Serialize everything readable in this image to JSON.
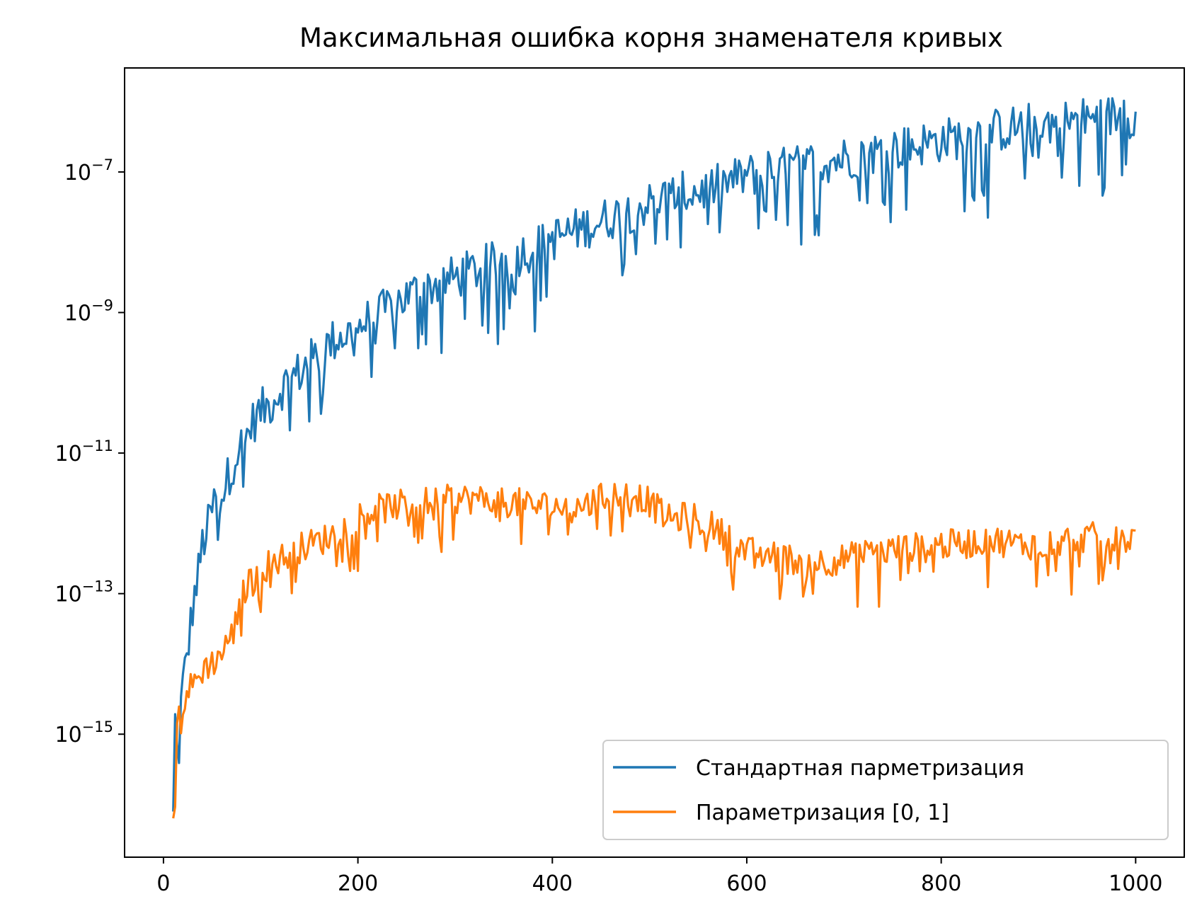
{
  "chart_data": {
    "type": "line",
    "title": "Максимальная ошибка корня знаменателя кривых",
    "xlabel": "",
    "ylabel": "",
    "x_range": [
      10,
      1000
    ],
    "xlim": [
      -40,
      1050
    ],
    "ylim_log10": [
      -16.75,
      -5.52
    ],
    "y_scale": "log",
    "grid": false,
    "legend_position": "lower right",
    "x_ticks": [
      {
        "value": 0,
        "label": "0"
      },
      {
        "value": 200,
        "label": "200"
      },
      {
        "value": 400,
        "label": "400"
      },
      {
        "value": 600,
        "label": "600"
      },
      {
        "value": 800,
        "label": "800"
      },
      {
        "value": 1000,
        "label": "1000"
      }
    ],
    "y_ticks": [
      {
        "exponent": -15,
        "base": "10",
        "exp": "−15"
      },
      {
        "exponent": -13,
        "base": "10",
        "exp": "−13"
      },
      {
        "exponent": -11,
        "base": "10",
        "exp": "−11"
      },
      {
        "exponent": -9,
        "base": "10",
        "exp": "−9"
      },
      {
        "exponent": -7,
        "base": "10",
        "exp": "−7"
      }
    ],
    "series": [
      {
        "name": "Стандартная парметризация",
        "color": "#1f77b4",
        "x": [
          10,
          12,
          15,
          18,
          20,
          25,
          30,
          35,
          40,
          45,
          50,
          55,
          60,
          65,
          70,
          75,
          80,
          85,
          90,
          95,
          100,
          110,
          120,
          130,
          140,
          150,
          160,
          170,
          180,
          190,
          200,
          220,
          240,
          260,
          280,
          300,
          320,
          340,
          360,
          380,
          400,
          420,
          440,
          460,
          480,
          500,
          520,
          540,
          560,
          580,
          600,
          620,
          640,
          660,
          680,
          700,
          720,
          740,
          760,
          780,
          800,
          820,
          840,
          860,
          880,
          900,
          920,
          940,
          960,
          980,
          1000
        ],
        "log10y": [
          -16.2,
          -14.8,
          -15.5,
          -14.6,
          -14.3,
          -13.8,
          -13.2,
          -12.8,
          -12.3,
          -12.1,
          -11.8,
          -11.6,
          -11.6,
          -11.4,
          -11.2,
          -11.0,
          -10.9,
          -10.8,
          -10.6,
          -10.5,
          -10.4,
          -10.3,
          -10.1,
          -9.95,
          -9.85,
          -9.7,
          -9.6,
          -9.45,
          -9.35,
          -9.3,
          -9.2,
          -9.05,
          -8.85,
          -8.7,
          -8.6,
          -8.5,
          -8.4,
          -8.3,
          -8.2,
          -8.1,
          -7.95,
          -7.85,
          -7.75,
          -7.65,
          -7.55,
          -7.45,
          -7.35,
          -7.3,
          -7.25,
          -7.15,
          -7.05,
          -7.0,
          -6.95,
          -6.9,
          -6.85,
          -6.8,
          -6.75,
          -6.7,
          -6.65,
          -6.6,
          -6.55,
          -6.5,
          -6.45,
          -6.4,
          -6.35,
          -6.3,
          -6.3,
          -6.25,
          -6.25,
          -6.2,
          -6.2
        ]
      },
      {
        "name": "Параметризация [0, 1]",
        "color": "#ff7f0e",
        "x": [
          10,
          12,
          15,
          18,
          20,
          25,
          30,
          35,
          40,
          45,
          50,
          55,
          60,
          65,
          70,
          75,
          80,
          85,
          90,
          95,
          100,
          110,
          120,
          130,
          140,
          150,
          160,
          170,
          180,
          190,
          200,
          220,
          240,
          260,
          280,
          300,
          320,
          340,
          360,
          380,
          400,
          420,
          440,
          460,
          480,
          500,
          520,
          540,
          560,
          580,
          600,
          620,
          640,
          660,
          680,
          700,
          720,
          740,
          760,
          780,
          800,
          820,
          840,
          860,
          880,
          900,
          920,
          940,
          960,
          980,
          1000
        ],
        "log10y": [
          -16.3,
          -15.6,
          -14.7,
          -14.8,
          -14.6,
          -14.4,
          -14.3,
          -14.2,
          -14.1,
          -14.0,
          -14.0,
          -13.9,
          -13.85,
          -13.7,
          -13.6,
          -13.4,
          -13.1,
          -12.9,
          -12.8,
          -12.85,
          -12.7,
          -12.55,
          -12.5,
          -12.45,
          -12.35,
          -12.3,
          -12.25,
          -12.2,
          -12.1,
          -12.0,
          -11.9,
          -11.8,
          -11.75,
          -11.7,
          -11.7,
          -11.65,
          -11.65,
          -11.7,
          -11.7,
          -11.75,
          -11.75,
          -11.8,
          -11.7,
          -11.6,
          -11.55,
          -11.7,
          -11.95,
          -11.9,
          -12.0,
          -12.2,
          -12.4,
          -12.45,
          -12.5,
          -12.55,
          -12.55,
          -12.5,
          -12.45,
          -12.4,
          -12.35,
          -12.35,
          -12.3,
          -12.3,
          -12.25,
          -12.25,
          -12.3,
          -12.3,
          -12.25,
          -12.2,
          -12.2,
          -12.25,
          -12.2
        ]
      }
    ]
  }
}
